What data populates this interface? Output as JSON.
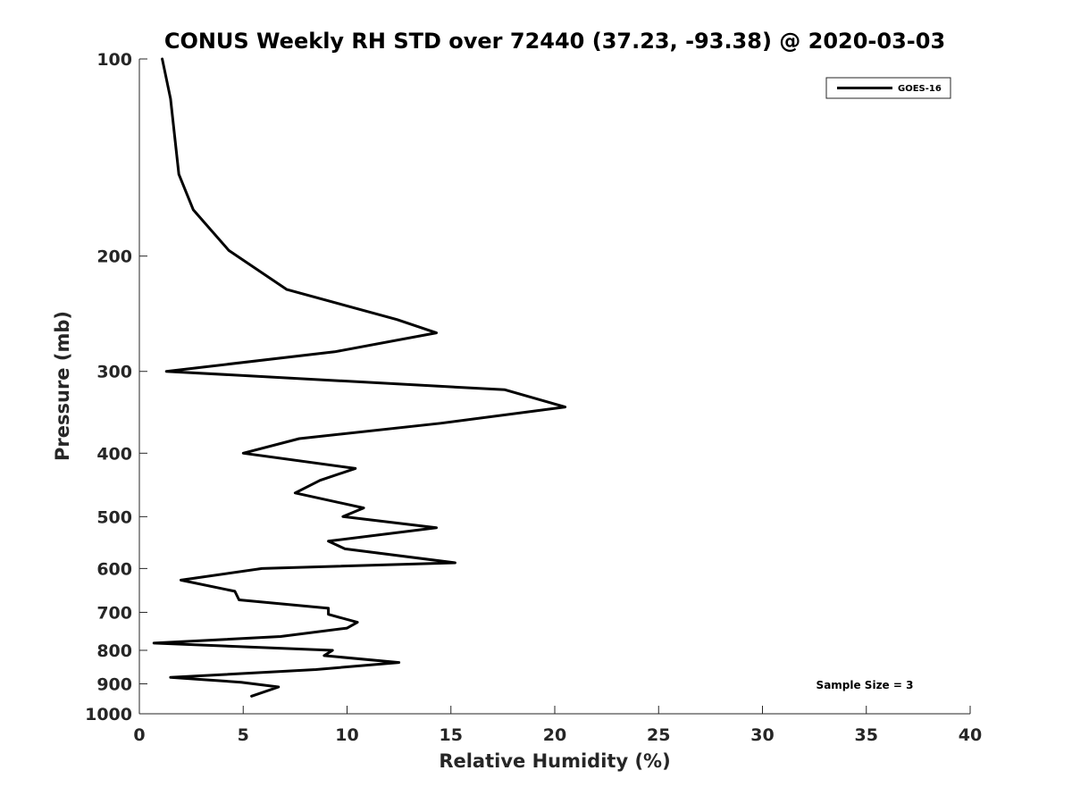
{
  "chart_data": {
    "type": "line",
    "title": "CONUS Weekly RH STD over 72440 (37.23, -93.38) @ 2020-03-03",
    "xlabel": "Relative Humidity (%)",
    "ylabel": "Pressure (mb)",
    "xlim": [
      0,
      40
    ],
    "ylim": [
      100,
      1000
    ],
    "y_scale": "log",
    "y_reversed": true,
    "x_ticks": [
      0,
      5,
      10,
      15,
      20,
      25,
      30,
      35,
      40
    ],
    "y_ticks": [
      100,
      200,
      300,
      400,
      500,
      600,
      700,
      800,
      900,
      1000
    ],
    "grid": false,
    "legend_position": "top-right",
    "series": [
      {
        "name": "GOES-16",
        "color": "#000000",
        "points": [
          [
            1.1,
            100
          ],
          [
            1.5,
            115
          ],
          [
            1.9,
            150
          ],
          [
            2.6,
            170
          ],
          [
            4.3,
            196
          ],
          [
            7.1,
            225
          ],
          [
            12.4,
            250
          ],
          [
            14.3,
            262
          ],
          [
            9.4,
            280
          ],
          [
            1.3,
            300
          ],
          [
            17.6,
            320
          ],
          [
            20.5,
            340
          ],
          [
            14.5,
            360
          ],
          [
            7.7,
            380
          ],
          [
            5.0,
            400
          ],
          [
            10.4,
            422
          ],
          [
            8.7,
            440
          ],
          [
            7.5,
            460
          ],
          [
            10.8,
            485
          ],
          [
            9.8,
            500
          ],
          [
            14.3,
            520
          ],
          [
            9.1,
            545
          ],
          [
            9.9,
            560
          ],
          [
            15.2,
            588
          ],
          [
            5.9,
            600
          ],
          [
            2.0,
            625
          ],
          [
            4.6,
            650
          ],
          [
            4.8,
            670
          ],
          [
            9.1,
            690
          ],
          [
            9.1,
            705
          ],
          [
            10.5,
            725
          ],
          [
            10.0,
            740
          ],
          [
            6.8,
            762
          ],
          [
            0.7,
            780
          ],
          [
            9.3,
            800
          ],
          [
            8.9,
            815
          ],
          [
            12.5,
            835
          ],
          [
            8.5,
            856
          ],
          [
            1.5,
            880
          ],
          [
            4.9,
            895
          ],
          [
            6.7,
            910
          ],
          [
            5.4,
            940
          ]
        ]
      }
    ],
    "annotation": "Sample Size = 3"
  },
  "colors": {
    "line": "#000000",
    "axis": "#262626",
    "background": "#ffffff"
  }
}
